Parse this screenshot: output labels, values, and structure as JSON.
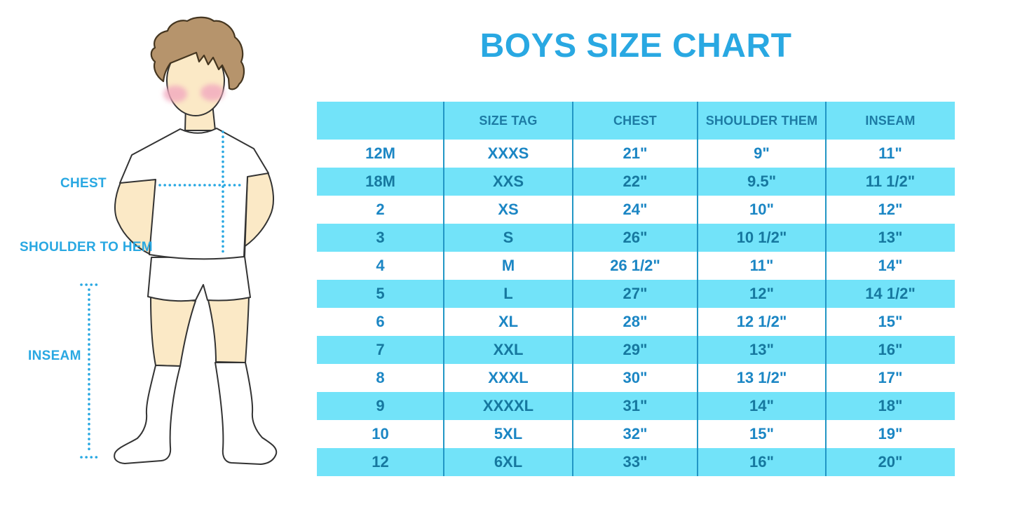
{
  "title": "BOYS SIZE CHART",
  "figure": {
    "chest_label": "CHEST",
    "shoulder_label": "SHOULDER TO HEM",
    "inseam_label": "INSEAM"
  },
  "table": {
    "headers": [
      "",
      "SIZE TAG",
      "CHEST",
      "SHOULDER THEM",
      "INSEAM"
    ],
    "rows": [
      [
        "12M",
        "XXXS",
        "21\"",
        "9\"",
        "11\""
      ],
      [
        "18M",
        "XXS",
        "22\"",
        "9.5\"",
        "11 1/2\""
      ],
      [
        "2",
        "XS",
        "24\"",
        "10\"",
        "12\""
      ],
      [
        "3",
        "S",
        "26\"",
        "10 1/2\"",
        "13\""
      ],
      [
        "4",
        "M",
        "26 1/2\"",
        "11\"",
        "14\""
      ],
      [
        "5",
        "L",
        "27\"",
        "12\"",
        "14 1/2\""
      ],
      [
        "6",
        "XL",
        "28\"",
        "12 1/2\"",
        "15\""
      ],
      [
        "7",
        "XXL",
        "29\"",
        "13\"",
        "16\""
      ],
      [
        "8",
        "XXXL",
        "30\"",
        "13 1/2\"",
        "17\""
      ],
      [
        "9",
        "XXXXL",
        "31\"",
        "14\"",
        "18\""
      ],
      [
        "10",
        "5XL",
        "32\"",
        "15\"",
        "19\""
      ],
      [
        "12",
        "6XL",
        "33\"",
        "16\"",
        "20\""
      ]
    ]
  },
  "colors": {
    "accent": "#29a8e2",
    "stripe": "#72e3f9",
    "header_text": "#1d7ba4",
    "cell_text": "#1b86c4",
    "cell_text_striped": "#16789f",
    "separator": "#2296c5",
    "skin": "#fbe9c6",
    "hair": "#b6946c",
    "hair_outline": "#453620",
    "outline": "#333333",
    "blush": "#f2a9bf"
  }
}
